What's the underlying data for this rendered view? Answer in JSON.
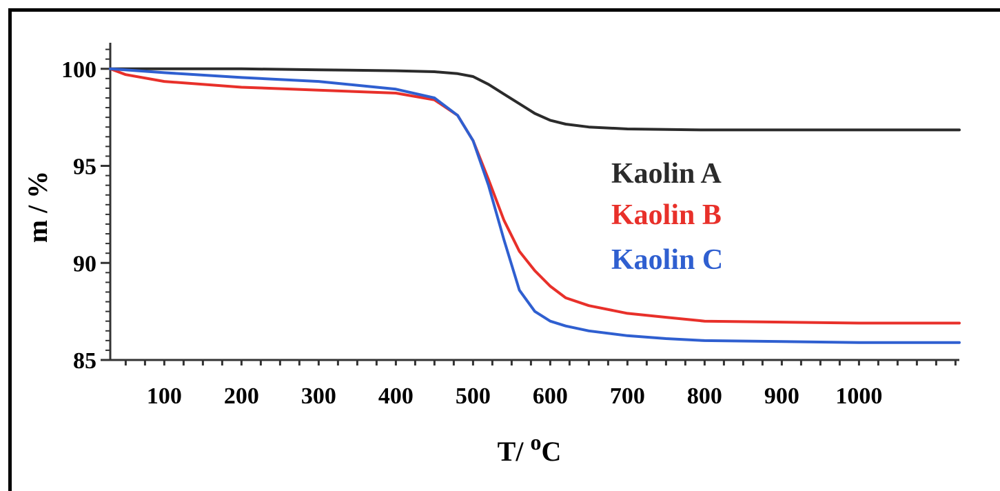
{
  "chart_data": {
    "type": "line",
    "title": "",
    "xlabel": "T/ ",
    "xlabel_sup": "o",
    "xlabel_unit": "C",
    "ylabel": "m / %",
    "xlim": [
      30,
      1130
    ],
    "ylim": [
      85,
      101.2
    ],
    "xticks": [
      100,
      200,
      300,
      400,
      500,
      600,
      700,
      800,
      900,
      1000
    ],
    "xtick_labels": [
      "100",
      "200",
      "300",
      "400",
      "500",
      "600",
      "700",
      "800",
      "900",
      "1000"
    ],
    "yticks": [
      85,
      90,
      95,
      100
    ],
    "ytick_labels": [
      "85",
      "90",
      "95",
      "100"
    ],
    "grid": false,
    "legend_position": "center-right",
    "series": [
      {
        "name": "Kaolin A",
        "color": "#2b2b2b",
        "x": [
          30,
          100,
          200,
          300,
          400,
          450,
          480,
          500,
          520,
          540,
          560,
          580,
          600,
          620,
          650,
          700,
          800,
          900,
          1000,
          1130
        ],
        "y": [
          100.0,
          100.0,
          100.0,
          99.95,
          99.9,
          99.85,
          99.75,
          99.6,
          99.2,
          98.7,
          98.2,
          97.7,
          97.35,
          97.15,
          97.0,
          96.9,
          96.85,
          96.85,
          96.85,
          96.85
        ]
      },
      {
        "name": "Kaolin B",
        "color": "#e8302a",
        "x": [
          30,
          50,
          100,
          200,
          300,
          400,
          450,
          480,
          500,
          520,
          540,
          560,
          580,
          600,
          620,
          650,
          700,
          750,
          800,
          900,
          1000,
          1130
        ],
        "y": [
          100.0,
          99.7,
          99.35,
          99.05,
          98.9,
          98.75,
          98.4,
          97.6,
          96.3,
          94.3,
          92.2,
          90.6,
          89.6,
          88.8,
          88.2,
          87.8,
          87.4,
          87.2,
          87.0,
          86.95,
          86.9,
          86.9
        ]
      },
      {
        "name": "Kaolin C",
        "color": "#2f5fd0",
        "x": [
          30,
          100,
          200,
          300,
          400,
          450,
          480,
          500,
          520,
          540,
          560,
          580,
          600,
          620,
          650,
          700,
          750,
          800,
          900,
          1000,
          1130
        ],
        "y": [
          100.0,
          99.8,
          99.55,
          99.35,
          98.95,
          98.5,
          97.6,
          96.3,
          94.0,
          91.2,
          88.6,
          87.5,
          87.0,
          86.75,
          86.5,
          86.25,
          86.1,
          86.0,
          85.95,
          85.9,
          85.9
        ]
      }
    ]
  }
}
